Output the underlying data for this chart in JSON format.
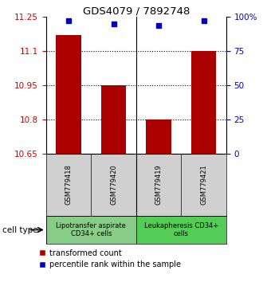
{
  "title": "GDS4079 / 7892748",
  "samples": [
    "GSM779418",
    "GSM779420",
    "GSM779419",
    "GSM779421"
  ],
  "transformed_counts": [
    11.17,
    10.95,
    10.8,
    11.1
  ],
  "percentile_ranks": [
    97,
    95,
    94,
    97
  ],
  "ylim_left": [
    10.65,
    11.25
  ],
  "ylim_right": [
    0,
    100
  ],
  "yticks_left": [
    10.65,
    10.8,
    10.95,
    11.1,
    11.25
  ],
  "ytick_labels_left": [
    "10.65",
    "10.8",
    "10.95",
    "11.1",
    "11.25"
  ],
  "yticks_right": [
    0,
    25,
    50,
    75,
    100
  ],
  "ytick_labels_right": [
    "0",
    "25",
    "50",
    "75",
    "100%"
  ],
  "bar_color": "#aa0000",
  "dot_color": "#0000cc",
  "groups": [
    {
      "label": "Lipotransfer aspirate\nCD34+ cells",
      "color": "#88cc88",
      "n": 2
    },
    {
      "label": "Leukapheresis CD34+\ncells",
      "color": "#55cc55",
      "n": 2
    }
  ],
  "sample_box_color": "#d0d0d0",
  "legend_bar_label": "transformed count",
  "legend_dot_label": "percentile rank within the sample",
  "cell_type_label": "cell type",
  "background_color": "#ffffff",
  "left_tick_color": "#cc0000",
  "right_tick_color": "#0000cc"
}
